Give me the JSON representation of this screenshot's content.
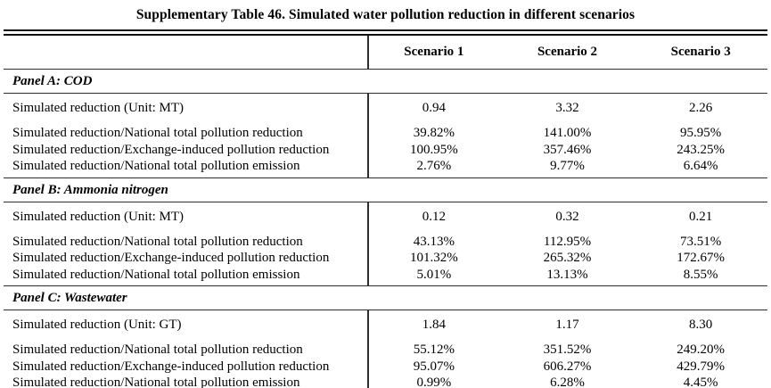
{
  "title": "Supplementary Table 46. Simulated water pollution reduction in different scenarios",
  "columns": [
    "Scenario 1",
    "Scenario 2",
    "Scenario 3"
  ],
  "panels": [
    {
      "name": "Panel A: COD",
      "rows": [
        {
          "label": "Simulated reduction (Unit: MT)",
          "values": [
            "0.94",
            "3.32",
            "2.26"
          ]
        },
        {
          "label": "Simulated reduction/National total pollution reduction",
          "values": [
            "39.82%",
            "141.00%",
            "95.95%"
          ]
        },
        {
          "label": "Simulated reduction/Exchange-induced pollution reduction",
          "values": [
            "100.95%",
            "357.46%",
            "243.25%"
          ]
        },
        {
          "label": "Simulated reduction/National total pollution emission",
          "values": [
            "2.76%",
            "9.77%",
            "6.64%"
          ]
        }
      ]
    },
    {
      "name": "Panel B: Ammonia nitrogen",
      "rows": [
        {
          "label": "Simulated reduction (Unit: MT)",
          "values": [
            "0.12",
            "0.32",
            "0.21"
          ]
        },
        {
          "label": "Simulated reduction/National total pollution reduction",
          "values": [
            "43.13%",
            "112.95%",
            "73.51%"
          ]
        },
        {
          "label": "Simulated reduction/Exchange-induced pollution reduction",
          "values": [
            "101.32%",
            "265.32%",
            "172.67%"
          ]
        },
        {
          "label": "Simulated reduction/National total pollution emission",
          "values": [
            "5.01%",
            "13.13%",
            "8.55%"
          ]
        }
      ]
    },
    {
      "name": "Panel C: Wastewater",
      "rows": [
        {
          "label": "Simulated reduction (Unit: GT)",
          "values": [
            "1.84",
            "1.17",
            "8.30"
          ]
        },
        {
          "label": "Simulated reduction/National total pollution reduction",
          "values": [
            "55.12%",
            "351.52%",
            "249.20%"
          ]
        },
        {
          "label": "Simulated reduction/Exchange-induced pollution reduction",
          "values": [
            "95.07%",
            "606.27%",
            "429.79%"
          ]
        },
        {
          "label": "Simulated reduction/National total pollution emission",
          "values": [
            "0.99%",
            "6.28%",
            "4.45%"
          ]
        }
      ]
    }
  ]
}
